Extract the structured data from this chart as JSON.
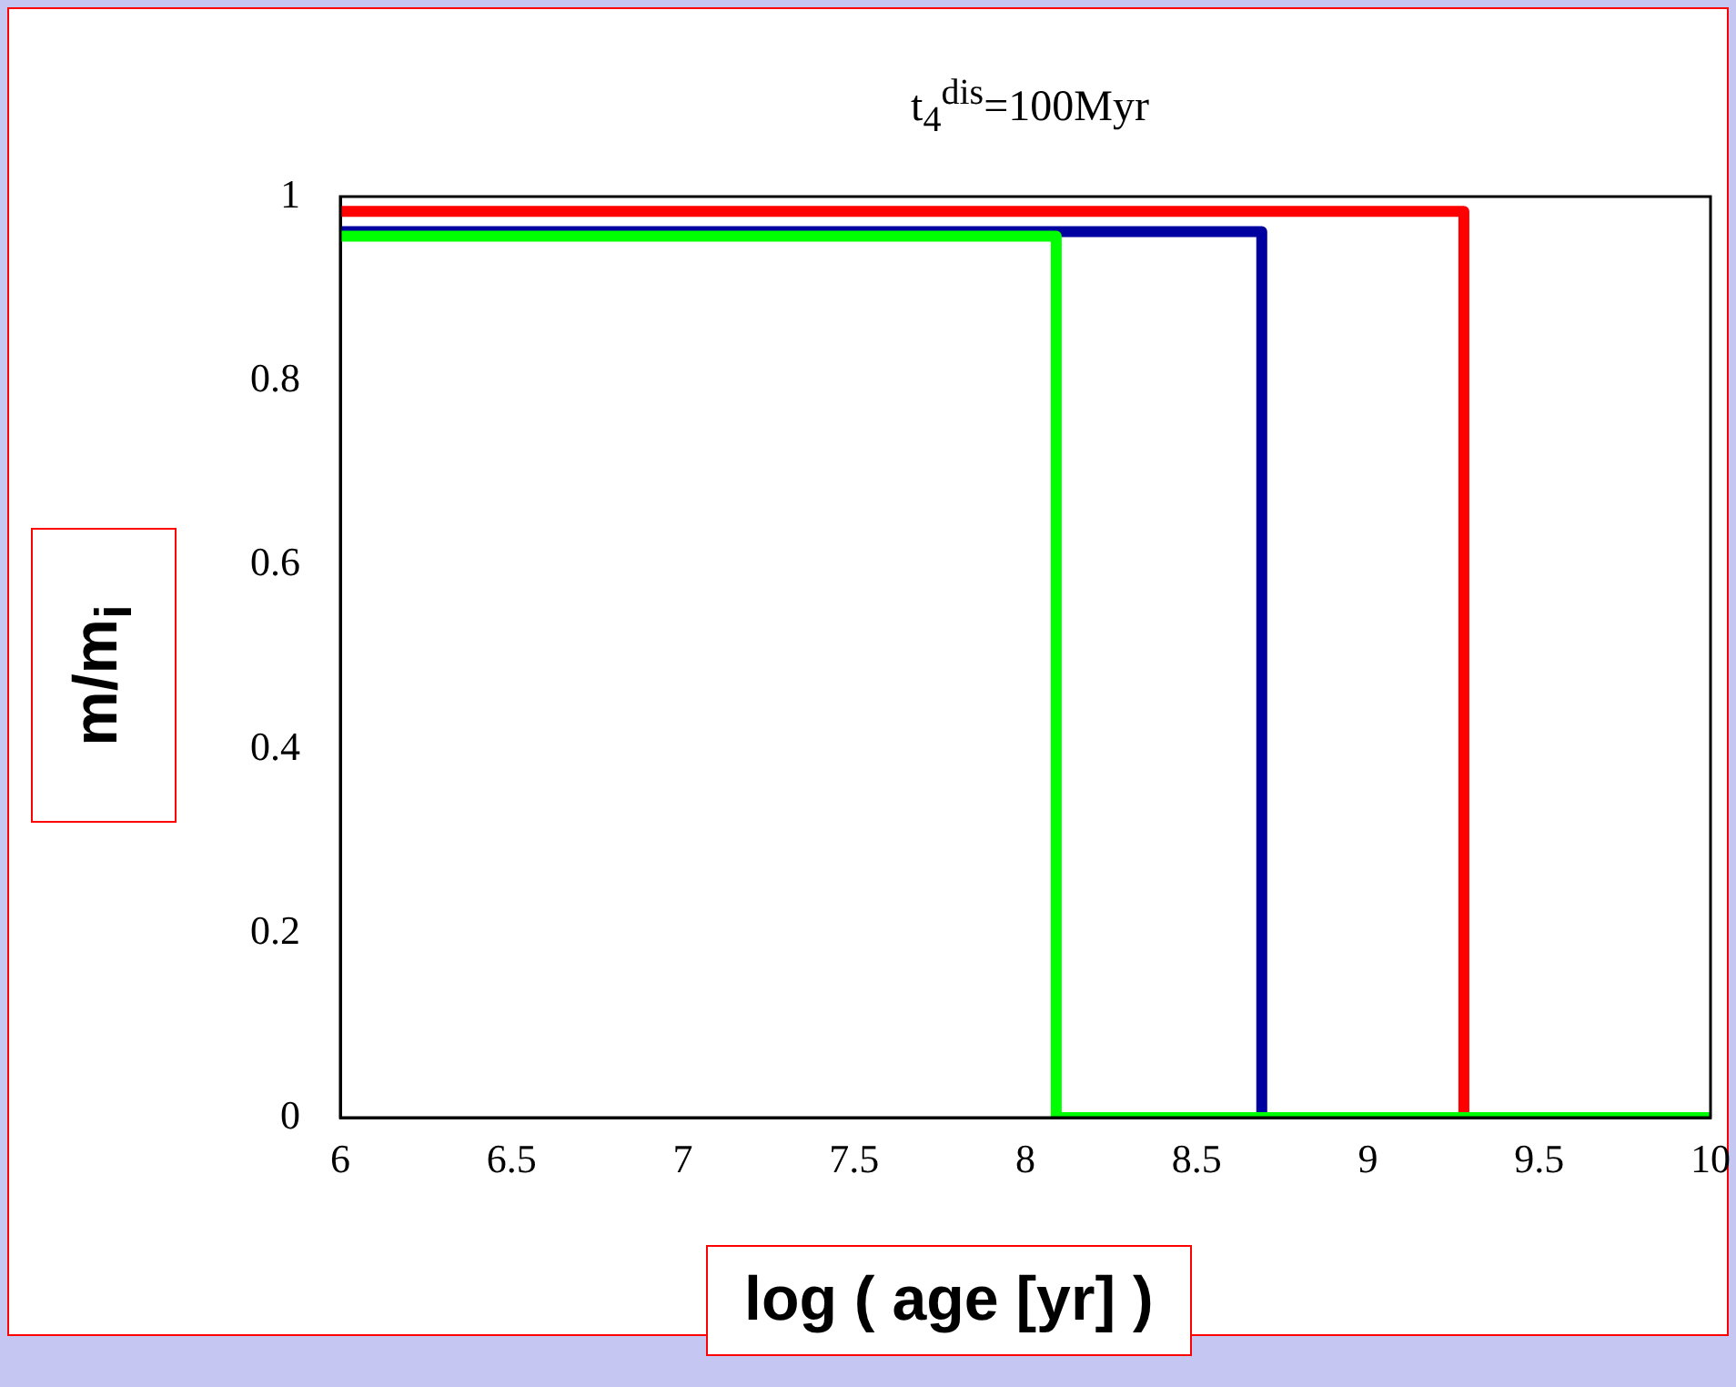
{
  "chart_data": {
    "type": "line",
    "title": "t$_{4}$$^{dis}$=100Myr",
    "xlabel": "log ( age [yr] )",
    "ylabel": "m/m$_{i}$",
    "xlim": [
      6,
      10
    ],
    "xticks": [
      6,
      6.5,
      7,
      7.5,
      8,
      8.5,
      9,
      9.5,
      10
    ],
    "ylim": [
      0,
      1
    ],
    "yticks": [
      0,
      0.2,
      0.4,
      0.6,
      0.8,
      1
    ],
    "grid": false,
    "legend": false,
    "marker": "none",
    "line_style": "solid",
    "series": [
      {
        "color": "#00ff00",
        "x": [
          6,
          8.09,
          8.09,
          10
        ],
        "values": [
          0.957,
          0.957,
          0,
          0
        ]
      },
      {
        "color": "#0000a0",
        "x": [
          6,
          8.69,
          8.69,
          10
        ],
        "values": [
          0.962,
          0.962,
          0,
          0
        ]
      },
      {
        "color": "#ff0000",
        "x": [
          6,
          9.28,
          9.28,
          10
        ],
        "values": [
          0.984,
          0.984,
          0,
          0
        ]
      }
    ]
  }
}
